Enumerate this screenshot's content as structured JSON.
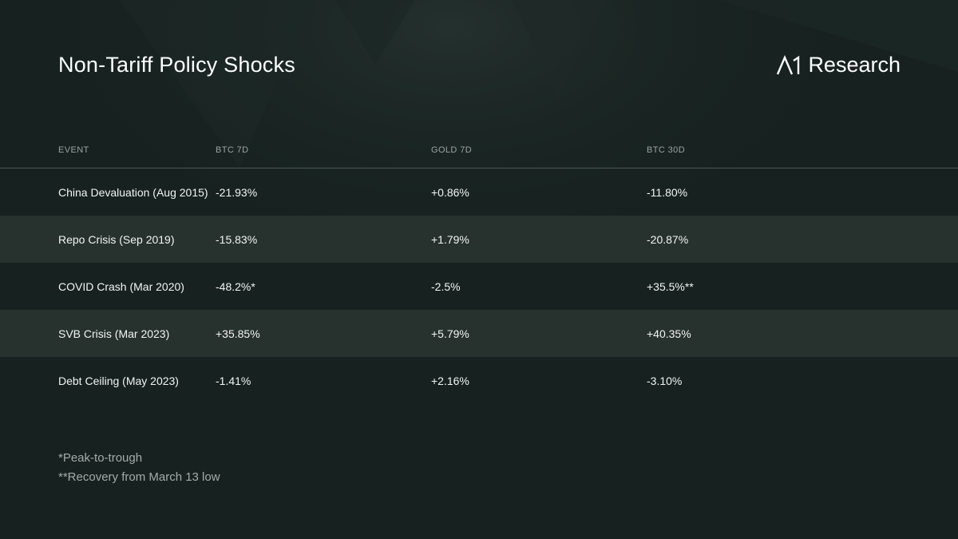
{
  "header": {
    "title": "Non-Tariff Policy Shocks",
    "brand": "Research"
  },
  "colors": {
    "background": "#172220",
    "row_alt": "#222d2b",
    "header_text": "#9aa4a1",
    "text": "#ffffff"
  },
  "chart_data": {
    "type": "table",
    "columns": [
      "EVENT",
      "BTC 7D",
      "GOLD 7D",
      "BTC 30D"
    ],
    "rows": [
      [
        "China Devaluation (Aug 2015)",
        "-21.93%",
        "+0.86%",
        "-11.80%"
      ],
      [
        "Repo Crisis (Sep 2019)",
        "-15.83%",
        "+1.79%",
        "-20.87%"
      ],
      [
        "COVID Crash (Mar 2020)",
        "-48.2%*",
        "-2.5%",
        "+35.5%**"
      ],
      [
        "SVB Crisis (Mar 2023)",
        "+35.85%",
        "+5.79%",
        "+40.35%"
      ],
      [
        "Debt Ceiling (May 2023)",
        "-1.41%",
        "+2.16%",
        "-3.10%"
      ]
    ]
  },
  "footnotes": [
    "*Peak-to-trough",
    "**Recovery from March 13 low"
  ]
}
